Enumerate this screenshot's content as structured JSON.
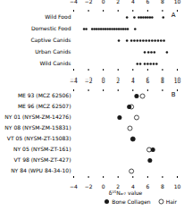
{
  "chart_data": [
    {
      "type": "scatter",
      "annotations": [
        "A"
      ],
      "categories": [
        "Wild Food",
        "Domestic Food",
        "Captive Canids",
        "Urban Canids",
        "Wild Canids"
      ],
      "values": [
        [
          3.2,
          4.2,
          4.8,
          5.1,
          5.4,
          5.7,
          6.0,
          6.3,
          6.6,
          8.1
        ],
        [
          -2.6,
          -2.3,
          -1.5,
          -1.2,
          -0.9,
          -0.6,
          -0.3,
          0.0,
          0.3,
          0.6,
          0.9,
          1.2,
          1.5,
          1.8,
          2.1,
          2.4,
          2.7,
          3.0,
          3.3,
          4.3
        ],
        [
          2.1,
          3.2,
          3.8,
          4.2,
          4.6,
          5.0,
          5.4,
          5.8,
          6.2,
          6.6,
          7.0,
          7.4,
          7.8,
          8.2
        ],
        [
          5.6,
          6.1,
          6.5,
          6.9,
          8.6
        ],
        [
          4.6,
          5.0,
          5.6,
          6.0,
          6.4,
          6.8,
          7.2
        ]
      ],
      "color": "#1a1a1a",
      "marker": "filled",
      "xlim": [
        -4,
        10
      ],
      "xticks": [
        -4,
        -2,
        0,
        2,
        4,
        6,
        8,
        10
      ],
      "grid": false
    },
    {
      "type": "scatter",
      "annotations": [
        "B"
      ],
      "xlabel": "δ¹⁵Nₐᵣ₇ value",
      "categories": [
        "ME 93 (MCZ 62506)",
        "ME 96 (MCZ 62507)",
        "NY 01 (NYSM-ZM-14276)",
        "NY 08 (NYSM-ZM-15831)",
        "VT 05 (NYSM-ZT-15083)",
        "NY 05 (NYSM-ZT-161)",
        "VT 98 (NYSM-ZT-427)",
        "NY 84 (WPU 84-34-10)"
      ],
      "series": [
        {
          "name": "Bone Collagen",
          "color": "#1a1a1a",
          "marker": "filled",
          "values": [
            4.5,
            3.5,
            2.2,
            null,
            4.0,
            6.7,
            6.3,
            null
          ]
        },
        {
          "name": "Hair",
          "color": "#ffffff",
          "marker": "open",
          "values": [
            5.3,
            3.8,
            4.5,
            3.6,
            4.0,
            6.2,
            null,
            3.8
          ]
        }
      ],
      "color": "#1a1a1a",
      "xlim": [
        -4,
        10
      ],
      "xticks": [
        -4,
        -2,
        0,
        2,
        4,
        6,
        8,
        10
      ],
      "legend": "lower right",
      "grid": false
    }
  ]
}
